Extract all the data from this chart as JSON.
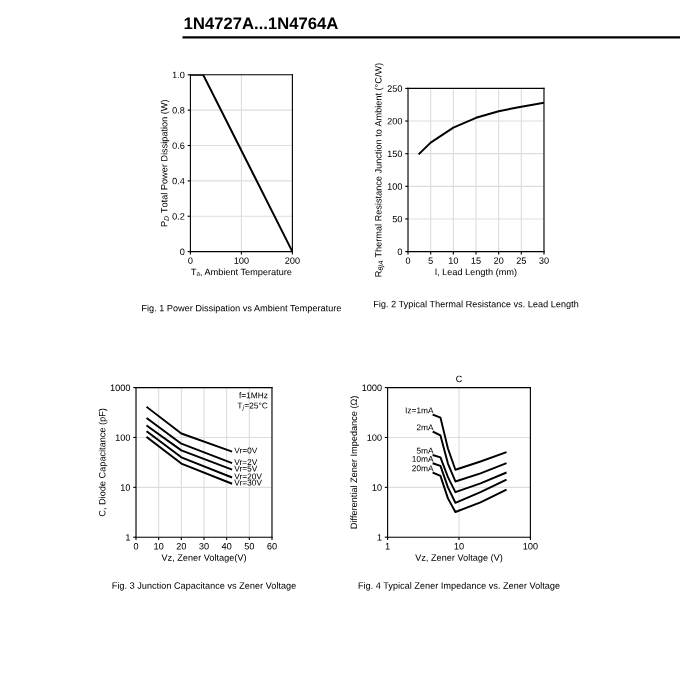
{
  "chart_data": [
    {
      "type": "line",
      "title": "1N4727A...1N4764A",
      "xlabel": "Tₐ, Ambient Temperature",
      "ylabel": "P$_{D}$ Total Power Dissipation (W)",
      "annotations": [
        "Fig. 1 Power Dissipation vs Ambient Temperature"
      ],
      "xlim": [
        0,
        200
      ],
      "xticks": [
        0,
        100,
        200
      ],
      "ylim": [
        0,
        1.0
      ],
      "yticks": [
        0,
        0.2,
        0.4,
        0.6,
        0.8,
        {
          "value": 1.0,
          "label": "1.0"
        }
      ],
      "grid": true,
      "series": [
        {
          "color": "#000000",
          "x": [
            0,
            25,
            200
          ],
          "values": [
            1.0,
            1.0,
            0
          ]
        }
      ]
    },
    {
      "type": "line",
      "xlabel": "l, Lead Length (mm)",
      "ylabel": "R$_{θJA}$ Thermal Resistance Junction to Ambient (°C/W)",
      "annotations": [
        "Fig. 2 Typical Thermal Resistance vs. Lead Length"
      ],
      "xlim": [
        0,
        30
      ],
      "xticks": [
        0,
        5,
        10,
        15,
        20,
        25,
        30
      ],
      "ylim": [
        0,
        250
      ],
      "yticks": [
        0,
        50,
        100,
        150,
        200,
        250
      ],
      "grid": true,
      "series": [
        {
          "color": "#000000",
          "x": [
            2.5,
            5,
            10,
            15,
            20,
            25,
            30
          ],
          "values": [
            150,
            167,
            190,
            205,
            215,
            222,
            228
          ]
        }
      ]
    },
    {
      "type": "line",
      "xlabel": "Vz, Zener Voltage(V)",
      "ylabel": "C, Diode Capacitance (pF)",
      "annotations": [
        "f=1MHz",
        "T$_{j}$=25°C",
        "Fig. 3 Junction Capacitance vs Zener Voltage"
      ],
      "log": "y",
      "xlim": [
        0,
        60
      ],
      "xticks": [
        0,
        10,
        20,
        30,
        40,
        50,
        60
      ],
      "ylim": [
        1,
        1000
      ],
      "yticks": [
        1,
        10,
        100,
        1000
      ],
      "grid": true,
      "series": [
        {
          "name": "Vr=0V",
          "color": "#000000",
          "x": [
            5,
            20,
            42
          ],
          "values": [
            400,
            120,
            53
          ]
        },
        {
          "name": "Vr=2V",
          "color": "#000000",
          "x": [
            5,
            20,
            42
          ],
          "values": [
            240,
            75,
            31
          ]
        },
        {
          "name": "Vr=5V",
          "color": "#000000",
          "x": [
            5,
            20,
            42
          ],
          "values": [
            170,
            55,
            23
          ]
        },
        {
          "name": "Vr=20V",
          "color": "#000000",
          "x": [
            5,
            20,
            42
          ],
          "values": [
            130,
            40,
            16
          ]
        },
        {
          "name": "Vr=30V",
          "color": "#000000",
          "x": [
            5,
            20,
            42
          ],
          "values": [
            100,
            30,
            12
          ]
        }
      ]
    },
    {
      "type": "line",
      "title": "C",
      "xlabel": "Vz, Zener Voltage (V)",
      "ylabel": "Differential Zener Impedance (Ω)",
      "annotations": [
        "Fig. 4 Typical Zener Impedance vs. Zener Voltage"
      ],
      "log": "xy",
      "xlim": [
        1,
        100
      ],
      "xticks": [
        1,
        10,
        100
      ],
      "ylim": [
        1,
        1000
      ],
      "yticks": [
        1,
        10,
        100,
        1000
      ],
      "grid": true,
      "series": [
        {
          "name": "Iz=1mA",
          "color": "#000000",
          "x": [
            4.4,
            5.5,
            7,
            8.9,
            20,
            45
          ],
          "values": [
            283,
            250,
            60,
            22.5,
            33,
            50
          ]
        },
        {
          "name": "2mA",
          "color": "#000000",
          "x": [
            4.4,
            5.5,
            7,
            8.9,
            20,
            45
          ],
          "values": [
            129,
            110,
            30,
            13.1,
            19,
            30
          ]
        },
        {
          "name": "5mA",
          "color": "#000000",
          "x": [
            4.4,
            5.5,
            7,
            8.9,
            20,
            45
          ],
          "values": [
            44,
            40,
            16,
            8.0,
            12,
            19.5
          ]
        },
        {
          "name": "10mA",
          "color": "#000000",
          "x": [
            4.4,
            5.5,
            7,
            8.9,
            20,
            45
          ],
          "values": [
            30,
            27,
            10,
            4.9,
            8,
            14
          ]
        },
        {
          "name": "20mA",
          "color": "#000000",
          "x": [
            4.4,
            5.5,
            7,
            8.9,
            20,
            45
          ],
          "values": [
            19.5,
            17,
            6,
            3.2,
            5,
            8.8
          ]
        }
      ]
    }
  ]
}
